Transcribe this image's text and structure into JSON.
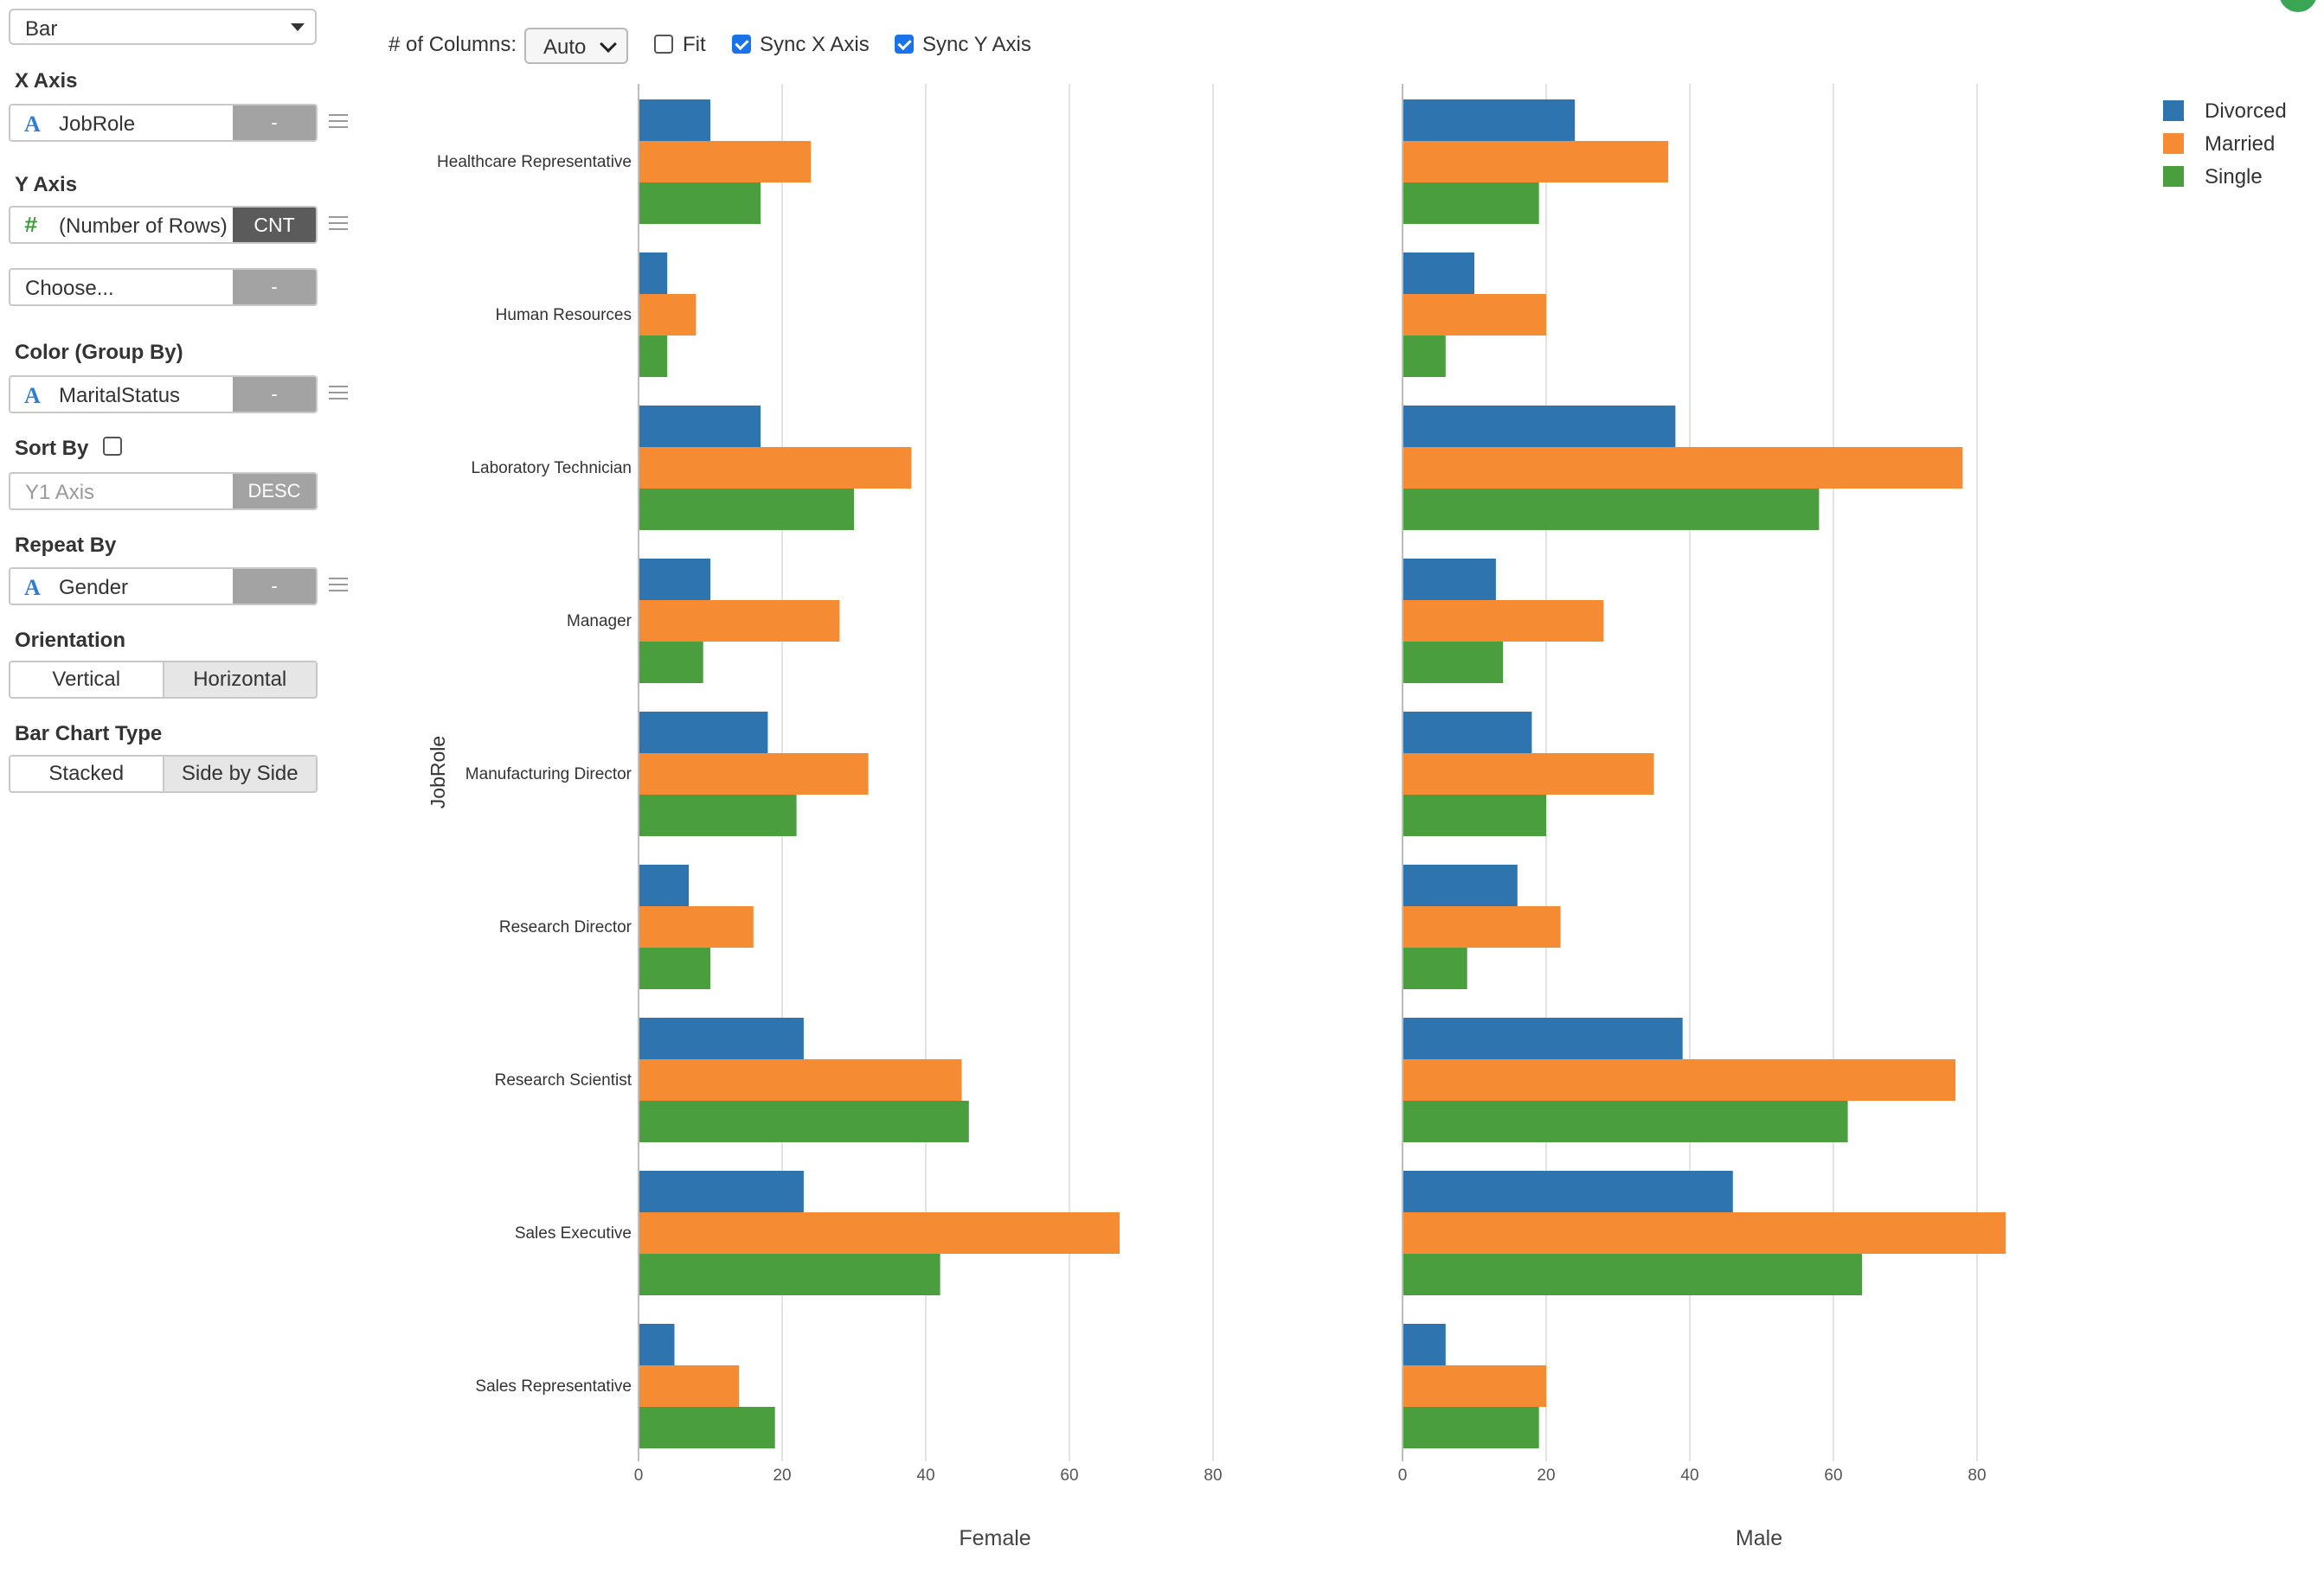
{
  "chart_type_select": "Bar",
  "x_axis": {
    "section_label": "X Axis",
    "column": "JobRole",
    "agg_button": "-"
  },
  "y_axis": {
    "section_label": "Y Axis",
    "column": "(Number of Rows)",
    "agg_button": "CNT"
  },
  "y2": {
    "placeholder": "Choose...",
    "agg_button": "-"
  },
  "color": {
    "section_label": "Color (Group By)",
    "column": "MaritalStatus",
    "agg_button": "-"
  },
  "sort": {
    "section_label": "Sort By",
    "checked": false,
    "field_placeholder": "Y1 Axis",
    "order_button": "DESC"
  },
  "repeat": {
    "section_label": "Repeat By",
    "column": "Gender",
    "agg_button": "-"
  },
  "orientation": {
    "section_label": "Orientation",
    "options": [
      "Vertical",
      "Horizontal"
    ],
    "selected": "Horizontal"
  },
  "bar_type": {
    "section_label": "Bar Chart Type",
    "options": [
      "Stacked",
      "Side by Side"
    ],
    "selected": "Side by Side"
  },
  "toolbar": {
    "columns_label": "# of Columns:",
    "columns_value": "Auto",
    "fit_label": "Fit",
    "fit_checked": false,
    "sync_x_label": "Sync X Axis",
    "sync_x_checked": true,
    "sync_y_label": "Sync Y Axis",
    "sync_y_checked": true
  },
  "colors": {
    "Divorced": "#2e75b0",
    "Married": "#f58b33",
    "Single": "#4a9e3e",
    "accent": "#1a73e8",
    "user_badge": "#3aa655"
  },
  "chart_data": {
    "type": "bar",
    "orientation": "horizontal",
    "ylabel": "JobRole",
    "categories": [
      "Healthcare Representative",
      "Human Resources",
      "Laboratory Technician",
      "Manager",
      "Manufacturing Director",
      "Research Director",
      "Research Scientist",
      "Sales Executive",
      "Sales Representative"
    ],
    "x_ticks": [
      0,
      20,
      40,
      60,
      80
    ],
    "xlim": [
      0,
      80
    ],
    "legend": [
      "Divorced",
      "Married",
      "Single"
    ],
    "legend_position": "top-right",
    "grid": true,
    "panels": [
      {
        "label": "Female",
        "series": [
          {
            "name": "Divorced",
            "values": [
              10,
              4,
              17,
              10,
              18,
              7,
              23,
              23,
              5
            ]
          },
          {
            "name": "Married",
            "values": [
              24,
              8,
              38,
              28,
              32,
              16,
              45,
              67,
              14
            ]
          },
          {
            "name": "Single",
            "values": [
              17,
              4,
              30,
              9,
              22,
              10,
              46,
              42,
              19
            ]
          }
        ]
      },
      {
        "label": "Male",
        "series": [
          {
            "name": "Divorced",
            "values": [
              24,
              10,
              38,
              13,
              18,
              16,
              39,
              46,
              6
            ]
          },
          {
            "name": "Married",
            "values": [
              37,
              20,
              78,
              28,
              35,
              22,
              77,
              84,
              20
            ]
          },
          {
            "name": "Single",
            "values": [
              19,
              6,
              58,
              14,
              20,
              9,
              62,
              64,
              19
            ]
          }
        ]
      }
    ]
  }
}
